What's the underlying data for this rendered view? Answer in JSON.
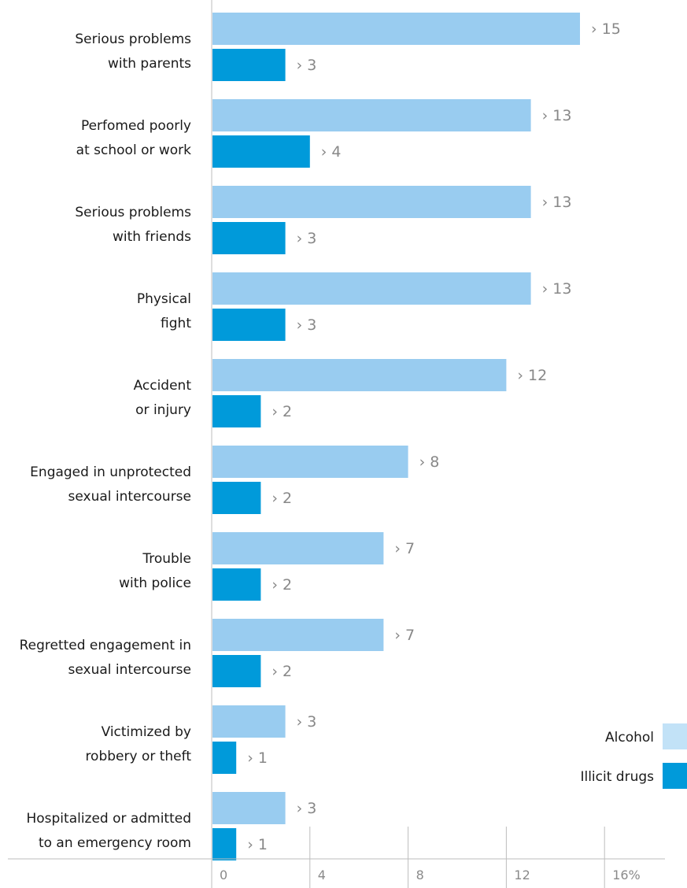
{
  "chart_data": {
    "type": "bar",
    "orientation": "horizontal",
    "categories": [
      [
        "Serious problems",
        "with parents"
      ],
      [
        "Perfomed poorly",
        "at school or work"
      ],
      [
        "Serious problems",
        "with friends"
      ],
      [
        "Physical",
        "fight"
      ],
      [
        "Accident",
        "or injury"
      ],
      [
        "Engaged in unprotected",
        "sexual intercourse"
      ],
      [
        "Trouble",
        "with police"
      ],
      [
        "Regretted engagement in",
        "sexual intercourse"
      ],
      [
        "Victimized by",
        "robbery or theft"
      ],
      [
        "Hospitalized or admitted",
        "to an emergency room"
      ]
    ],
    "series": [
      {
        "name": "Alcohol",
        "color": "#99CCF0",
        "values": [
          15,
          13,
          13,
          13,
          12,
          8,
          7,
          7,
          3,
          3
        ]
      },
      {
        "name": "Illicit drugs",
        "color": "#009ADA",
        "values": [
          3,
          4,
          3,
          3,
          2,
          2,
          2,
          2,
          1,
          1
        ]
      }
    ],
    "value_prefix": "› ",
    "xlim": [
      0,
      16
    ],
    "ticks": [
      "0",
      "4",
      "8",
      "12",
      "16%"
    ],
    "grid": true,
    "legend_position": "bottom-right"
  }
}
